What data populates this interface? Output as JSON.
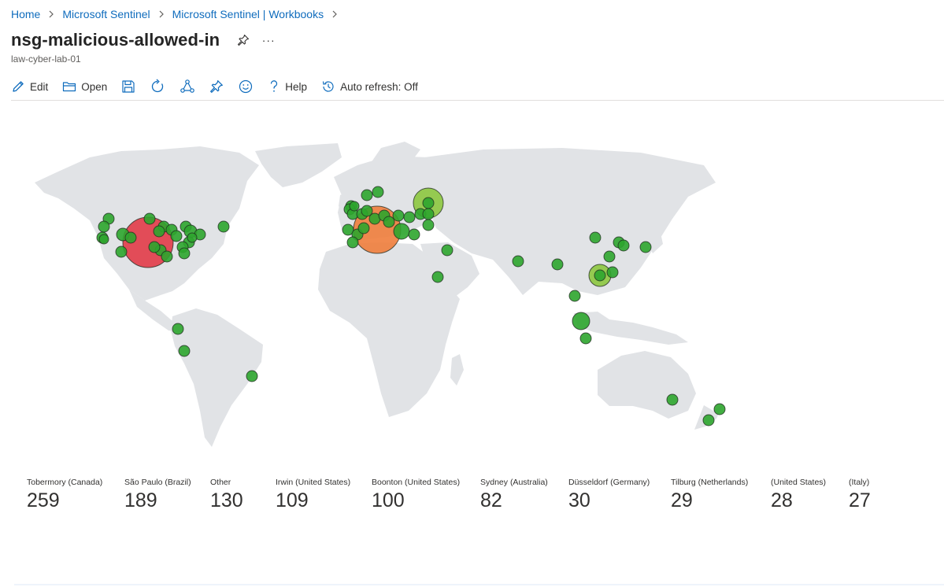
{
  "breadcrumb": {
    "items": [
      "Home",
      "Microsoft Sentinel",
      "Microsoft Sentinel | Workbooks"
    ]
  },
  "header": {
    "title": "nsg-malicious-allowed-in",
    "subtitle": "law-cyber-lab-01",
    "more_label": "···"
  },
  "toolbar": {
    "edit_label": "Edit",
    "open_label": "Open",
    "help_label": "Help",
    "auto_refresh_label": "Auto refresh: Off",
    "icons": [
      "edit-icon",
      "open-folder-icon",
      "save-icon",
      "refresh-icon",
      "share-icon",
      "pin-icon",
      "feedback-smiley-icon",
      "help-icon",
      "history-icon"
    ]
  },
  "map": {
    "land_color": "#e1e3e6",
    "bubble_colors": {
      "low": "#2ea52e",
      "mid": "#8dc63f",
      "high": "#ef7d3c",
      "top": "#e23b48"
    }
  },
  "tiles": [
    {
      "label": "Tobermory (Canada)",
      "value": "259"
    },
    {
      "label": "São Paulo (Brazil)",
      "value": "189"
    },
    {
      "label": "Other",
      "value": "130"
    },
    {
      "label": "Irwin (United States)",
      "value": "109"
    },
    {
      "label": "Boonton (United States)",
      "value": "100"
    },
    {
      "label": "Sydney (Australia)",
      "value": "82"
    },
    {
      "label": "Düsseldorf (Germany)",
      "value": "30"
    },
    {
      "label": "Tilburg (Netherlands)",
      "value": "29"
    },
    {
      "label": "(United States)",
      "value": "28"
    },
    {
      "label": "(Italy)",
      "value": "27"
    }
  ]
}
